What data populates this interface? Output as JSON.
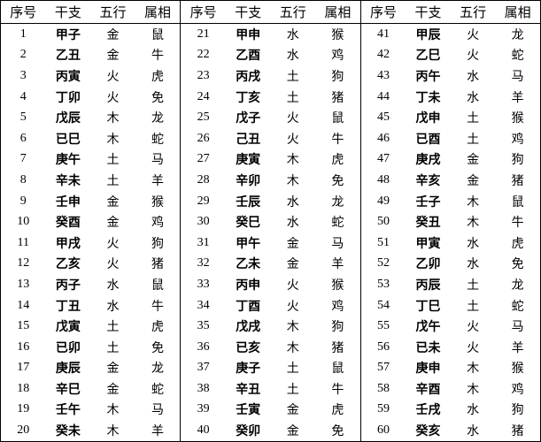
{
  "table": {
    "groups": [
      {
        "header": [
          "序号",
          "干支",
          "五行",
          "属相"
        ],
        "rows": [
          [
            1,
            "甲子",
            "金",
            "鼠"
          ],
          [
            2,
            "乙丑",
            "金",
            "牛"
          ],
          [
            3,
            "丙寅",
            "火",
            "虎"
          ],
          [
            4,
            "丁卯",
            "火",
            "免"
          ],
          [
            5,
            "戊辰",
            "木",
            "龙"
          ],
          [
            6,
            "已巳",
            "木",
            "蛇"
          ],
          [
            7,
            "庚午",
            "土",
            "马"
          ],
          [
            8,
            "辛未",
            "土",
            "羊"
          ],
          [
            9,
            "壬申",
            "金",
            "猴"
          ],
          [
            10,
            "癸酉",
            "金",
            "鸡"
          ],
          [
            11,
            "甲戌",
            "火",
            "狗"
          ],
          [
            12,
            "乙亥",
            "火",
            "猪"
          ],
          [
            13,
            "丙子",
            "水",
            "鼠"
          ],
          [
            14,
            "丁丑",
            "水",
            "牛"
          ],
          [
            15,
            "戊寅",
            "土",
            "虎"
          ],
          [
            16,
            "已卯",
            "土",
            "免"
          ],
          [
            17,
            "庚辰",
            "金",
            "龙"
          ],
          [
            18,
            "辛巳",
            "金",
            "蛇"
          ],
          [
            19,
            "壬午",
            "木",
            "马"
          ],
          [
            20,
            "癸未",
            "木",
            "羊"
          ]
        ]
      },
      {
        "header": [
          "序号",
          "干支",
          "五行",
          "属相"
        ],
        "rows": [
          [
            21,
            "甲申",
            "水",
            "猴"
          ],
          [
            22,
            "乙酉",
            "水",
            "鸡"
          ],
          [
            23,
            "丙戌",
            "土",
            "狗"
          ],
          [
            24,
            "丁亥",
            "土",
            "猪"
          ],
          [
            25,
            "戊子",
            "火",
            "鼠"
          ],
          [
            26,
            "己丑",
            "火",
            "牛"
          ],
          [
            27,
            "庚寅",
            "木",
            "虎"
          ],
          [
            28,
            "辛卯",
            "木",
            "免"
          ],
          [
            29,
            "壬辰",
            "水",
            "龙"
          ],
          [
            30,
            "癸巳",
            "水",
            "蛇"
          ],
          [
            31,
            "甲午",
            "金",
            "马"
          ],
          [
            32,
            "乙未",
            "金",
            "羊"
          ],
          [
            33,
            "丙申",
            "火",
            "猴"
          ],
          [
            34,
            "丁酉",
            "火",
            "鸡"
          ],
          [
            35,
            "戊戌",
            "木",
            "狗"
          ],
          [
            36,
            "已亥",
            "木",
            "猪"
          ],
          [
            37,
            "庚子",
            "土",
            "鼠"
          ],
          [
            38,
            "辛丑",
            "土",
            "牛"
          ],
          [
            39,
            "壬寅",
            "金",
            "虎"
          ],
          [
            40,
            "癸卯",
            "金",
            "免"
          ]
        ]
      },
      {
        "header": [
          "序号",
          "干支",
          "五行",
          "属相"
        ],
        "rows": [
          [
            41,
            "甲辰",
            "火",
            "龙"
          ],
          [
            42,
            "乙巳",
            "火",
            "蛇"
          ],
          [
            43,
            "丙午",
            "水",
            "马"
          ],
          [
            44,
            "丁未",
            "水",
            "羊"
          ],
          [
            45,
            "戊申",
            "土",
            "猴"
          ],
          [
            46,
            "已酉",
            "土",
            "鸡"
          ],
          [
            47,
            "庚戌",
            "金",
            "狗"
          ],
          [
            48,
            "辛亥",
            "金",
            "猪"
          ],
          [
            49,
            "壬子",
            "木",
            "鼠"
          ],
          [
            50,
            "癸丑",
            "木",
            "牛"
          ],
          [
            51,
            "甲寅",
            "水",
            "虎"
          ],
          [
            52,
            "乙卯",
            "水",
            "免"
          ],
          [
            53,
            "丙辰",
            "土",
            "龙"
          ],
          [
            54,
            "丁巳",
            "土",
            "蛇"
          ],
          [
            55,
            "戊午",
            "火",
            "马"
          ],
          [
            56,
            "已未",
            "火",
            "羊"
          ],
          [
            57,
            "庚申",
            "木",
            "猴"
          ],
          [
            58,
            "辛酉",
            "木",
            "鸡"
          ],
          [
            59,
            "壬戌",
            "水",
            "狗"
          ],
          [
            60,
            "癸亥",
            "水",
            "猪"
          ]
        ]
      }
    ]
  }
}
